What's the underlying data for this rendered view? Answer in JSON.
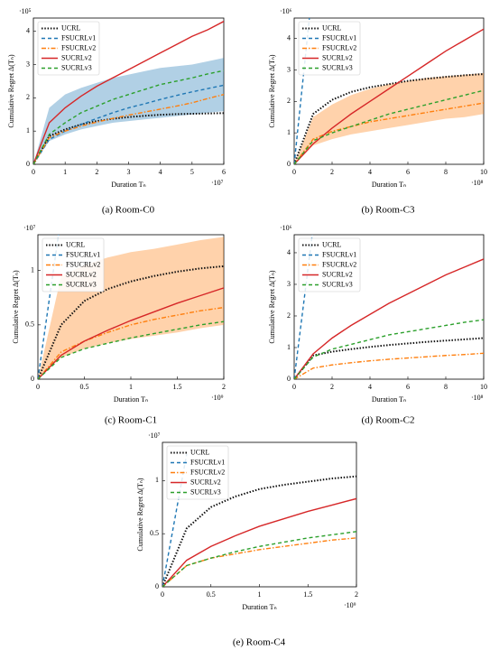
{
  "chart_data": [
    {
      "type": "line",
      "caption": "(a) Room-C0",
      "x_label": "Duration Tₙ",
      "y_label": "Cumulative Regret Δ(Tₙ)",
      "x_multiplier": "·10⁷",
      "y_multiplier": "·10⁵",
      "x": [
        0,
        0.5,
        1,
        1.5,
        2,
        2.5,
        3,
        3.5,
        4,
        4.5,
        5,
        5.5,
        6
      ],
      "xlim": [
        0,
        6
      ],
      "ylim": [
        0,
        4.4
      ],
      "xticks": [
        0,
        1,
        2,
        3,
        4,
        5,
        6
      ],
      "yticks": [
        0,
        1,
        2,
        3,
        4
      ],
      "legend": "upper left",
      "series": [
        {
          "name": "UCRL",
          "color": "#111111",
          "style": "dotted",
          "values": [
            0,
            0.85,
            1.05,
            1.2,
            1.3,
            1.37,
            1.42,
            1.46,
            1.49,
            1.51,
            1.52,
            1.53,
            1.54
          ]
        },
        {
          "name": "FSUCRLv1",
          "color": "#1f77b4",
          "style": "dashed",
          "values": [
            0,
            0.75,
            1.0,
            1.2,
            1.38,
            1.55,
            1.7,
            1.82,
            1.95,
            2.07,
            2.18,
            2.28,
            2.38
          ],
          "band_low": [
            0,
            0.7,
            0.9,
            1.05,
            1.15,
            1.25,
            1.3,
            1.35,
            1.4,
            1.45,
            1.5,
            1.55,
            1.6
          ],
          "band_high": [
            0,
            1.7,
            2.1,
            2.3,
            2.45,
            2.6,
            2.7,
            2.8,
            2.9,
            2.95,
            3.0,
            3.1,
            3.2
          ]
        },
        {
          "name": "FSUCRLv2",
          "color": "#ff7f0e",
          "style": "dashdot",
          "values": [
            0,
            0.8,
            1.0,
            1.15,
            1.27,
            1.38,
            1.48,
            1.57,
            1.66,
            1.75,
            1.85,
            1.98,
            2.1
          ]
        },
        {
          "name": "SUCRLv2",
          "color": "#d62728",
          "style": "solid",
          "values": [
            0,
            1.25,
            1.7,
            2.05,
            2.35,
            2.6,
            2.85,
            3.1,
            3.35,
            3.6,
            3.85,
            4.05,
            4.3
          ]
        },
        {
          "name": "SUCRLv3",
          "color": "#2ca02c",
          "style": "dashed",
          "values": [
            0,
            0.9,
            1.25,
            1.55,
            1.75,
            1.95,
            2.1,
            2.25,
            2.4,
            2.5,
            2.6,
            2.72,
            2.82
          ]
        }
      ]
    },
    {
      "type": "line",
      "caption": "(b) Room-C3",
      "x_label": "Duration Tₙ",
      "y_label": "Cumulative Regret Δ(Tₙ)",
      "x_multiplier": "·10⁸",
      "y_multiplier": "·10⁶",
      "x": [
        0,
        1,
        2,
        3,
        4,
        5,
        6,
        7,
        8,
        9,
        10
      ],
      "xlim": [
        0,
        10
      ],
      "ylim": [
        0,
        4.65
      ],
      "xticks": [
        0,
        2,
        4,
        6,
        8,
        10
      ],
      "yticks": [
        0,
        1,
        2,
        3,
        4
      ],
      "legend": "upper left",
      "series": [
        {
          "name": "UCRL",
          "color": "#111111",
          "style": "dotted",
          "values": [
            0,
            1.6,
            2.05,
            2.3,
            2.45,
            2.55,
            2.65,
            2.72,
            2.78,
            2.83,
            2.87
          ]
        },
        {
          "name": "FSUCRLv1",
          "color": "#1f77b4",
          "style": "dashed",
          "values": [
            0,
            5.8,
            null,
            null,
            null,
            null,
            null,
            null,
            null,
            null,
            null
          ]
        },
        {
          "name": "FSUCRLv2",
          "color": "#ff7f0e",
          "style": "dashdot",
          "values": [
            0,
            0.8,
            1.05,
            1.2,
            1.35,
            1.45,
            1.55,
            1.65,
            1.75,
            1.85,
            1.95
          ],
          "band_low": [
            0,
            0.6,
            0.8,
            0.95,
            1.05,
            1.15,
            1.25,
            1.35,
            1.45,
            1.5,
            1.6
          ],
          "band_high": [
            0,
            1.5,
            1.9,
            2.2,
            2.4,
            2.55,
            2.65,
            2.75,
            2.8,
            2.85,
            2.9
          ]
        },
        {
          "name": "SUCRLv2",
          "color": "#d62728",
          "style": "solid",
          "values": [
            0,
            0.65,
            1.15,
            1.6,
            2.0,
            2.4,
            2.8,
            3.2,
            3.6,
            3.95,
            4.3
          ]
        },
        {
          "name": "SUCRLv3",
          "color": "#2ca02c",
          "style": "dashed",
          "values": [
            0,
            0.75,
            1.0,
            1.2,
            1.4,
            1.6,
            1.75,
            1.9,
            2.05,
            2.2,
            2.35
          ]
        }
      ]
    },
    {
      "type": "line",
      "caption": "(c) Room-C1",
      "x_label": "Duration Tₙ",
      "y_label": "Cumulative Regret Δ(Tₙ)",
      "x_multiplier": "·10⁹",
      "y_multiplier": "·10⁷",
      "x": [
        0,
        0.25,
        0.5,
        0.75,
        1,
        1.25,
        1.5,
        1.75,
        2
      ],
      "xlim": [
        0,
        2
      ],
      "ylim": [
        0,
        1.33
      ],
      "xticks": [
        0,
        0.5,
        1,
        1.5,
        2
      ],
      "yticks": [
        0,
        0.5,
        1
      ],
      "legend": "upper left",
      "series": [
        {
          "name": "UCRL",
          "color": "#111111",
          "style": "dotted",
          "values": [
            0,
            0.5,
            0.72,
            0.83,
            0.9,
            0.95,
            0.99,
            1.02,
            1.04
          ]
        },
        {
          "name": "FSUCRLv1",
          "color": "#1f77b4",
          "style": "dashed",
          "values": [
            0,
            1.5,
            null,
            null,
            null,
            null,
            null,
            null,
            null
          ]
        },
        {
          "name": "FSUCRLv2",
          "color": "#ff7f0e",
          "style": "dashdot",
          "values": [
            0,
            0.25,
            0.35,
            0.43,
            0.5,
            0.55,
            0.59,
            0.63,
            0.66
          ],
          "band_low": [
            0,
            0.2,
            0.28,
            0.33,
            0.37,
            0.4,
            0.43,
            0.47,
            0.5
          ],
          "band_high": [
            0,
            0.95,
            1.05,
            1.12,
            1.17,
            1.2,
            1.24,
            1.28,
            1.31
          ]
        },
        {
          "name": "SUCRLv2",
          "color": "#d62728",
          "style": "solid",
          "values": [
            0,
            0.22,
            0.35,
            0.45,
            0.54,
            0.62,
            0.7,
            0.77,
            0.84
          ]
        },
        {
          "name": "SUCRLv3",
          "color": "#2ca02c",
          "style": "dashed",
          "values": [
            0,
            0.2,
            0.28,
            0.33,
            0.38,
            0.42,
            0.46,
            0.5,
            0.53
          ]
        }
      ]
    },
    {
      "type": "line",
      "caption": "(d) Room-C2",
      "x_label": "Duration Tₙ",
      "y_label": "Cumulative Regret Δ(Tₙ)",
      "x_multiplier": "·10⁸",
      "y_multiplier": "·10⁶",
      "x": [
        0,
        1,
        2,
        3,
        4,
        5,
        6,
        7,
        8,
        9,
        10
      ],
      "xlim": [
        0,
        10
      ],
      "ylim": [
        0,
        4.57
      ],
      "xticks": [
        0,
        2,
        4,
        6,
        8,
        10
      ],
      "yticks": [
        0,
        1,
        2,
        3,
        4
      ],
      "legend": "upper left",
      "series": [
        {
          "name": "UCRL",
          "color": "#111111",
          "style": "dotted",
          "values": [
            0,
            0.75,
            0.87,
            0.95,
            1.02,
            1.08,
            1.13,
            1.18,
            1.22,
            1.26,
            1.3
          ]
        },
        {
          "name": "FSUCRLv1",
          "color": "#1f77b4",
          "style": "dashed",
          "values": [
            0,
            4.8,
            null,
            null,
            null,
            null,
            null,
            null,
            null,
            null,
            null
          ]
        },
        {
          "name": "FSUCRLv2",
          "color": "#ff7f0e",
          "style": "dashdot",
          "values": [
            0,
            0.35,
            0.45,
            0.52,
            0.58,
            0.63,
            0.67,
            0.71,
            0.75,
            0.78,
            0.82
          ]
        },
        {
          "name": "SUCRLv2",
          "color": "#d62728",
          "style": "solid",
          "values": [
            0,
            0.8,
            1.3,
            1.7,
            2.05,
            2.4,
            2.7,
            3.0,
            3.3,
            3.55,
            3.8
          ]
        },
        {
          "name": "SUCRLv3",
          "color": "#2ca02c",
          "style": "dashed",
          "values": [
            0,
            0.7,
            0.95,
            1.1,
            1.25,
            1.4,
            1.5,
            1.6,
            1.7,
            1.8,
            1.88
          ]
        }
      ]
    },
    {
      "type": "line",
      "caption": "(e) Room-C4",
      "x_label": "Duration Tₙ",
      "y_label": "Cumulative Regret Δ(Tₙ)",
      "x_multiplier": "·10⁹",
      "y_multiplier": "·10⁷",
      "x": [
        0,
        0.25,
        0.5,
        0.75,
        1,
        1.25,
        1.5,
        1.75,
        2
      ],
      "xlim": [
        0,
        2
      ],
      "ylim": [
        0,
        1.36
      ],
      "xticks": [
        0,
        0.5,
        1,
        1.5,
        2
      ],
      "yticks": [
        0,
        0.5,
        1
      ],
      "legend": "upper left",
      "series": [
        {
          "name": "UCRL",
          "color": "#111111",
          "style": "dotted",
          "values": [
            0,
            0.55,
            0.75,
            0.85,
            0.92,
            0.96,
            0.99,
            1.02,
            1.04
          ]
        },
        {
          "name": "FSUCRLv1",
          "color": "#1f77b4",
          "style": "dashed",
          "values": [
            0,
            1.25,
            null,
            null,
            null,
            null,
            null,
            null,
            null
          ]
        },
        {
          "name": "FSUCRLv2",
          "color": "#ff7f0e",
          "style": "dashdot",
          "values": [
            0,
            0.2,
            0.27,
            0.31,
            0.35,
            0.38,
            0.41,
            0.44,
            0.46
          ]
        },
        {
          "name": "SUCRLv2",
          "color": "#d62728",
          "style": "solid",
          "values": [
            0,
            0.25,
            0.38,
            0.48,
            0.57,
            0.64,
            0.71,
            0.77,
            0.83
          ]
        },
        {
          "name": "SUCRLv3",
          "color": "#2ca02c",
          "style": "dashed",
          "values": [
            0,
            0.2,
            0.27,
            0.33,
            0.38,
            0.42,
            0.46,
            0.49,
            0.52
          ]
        }
      ]
    }
  ]
}
